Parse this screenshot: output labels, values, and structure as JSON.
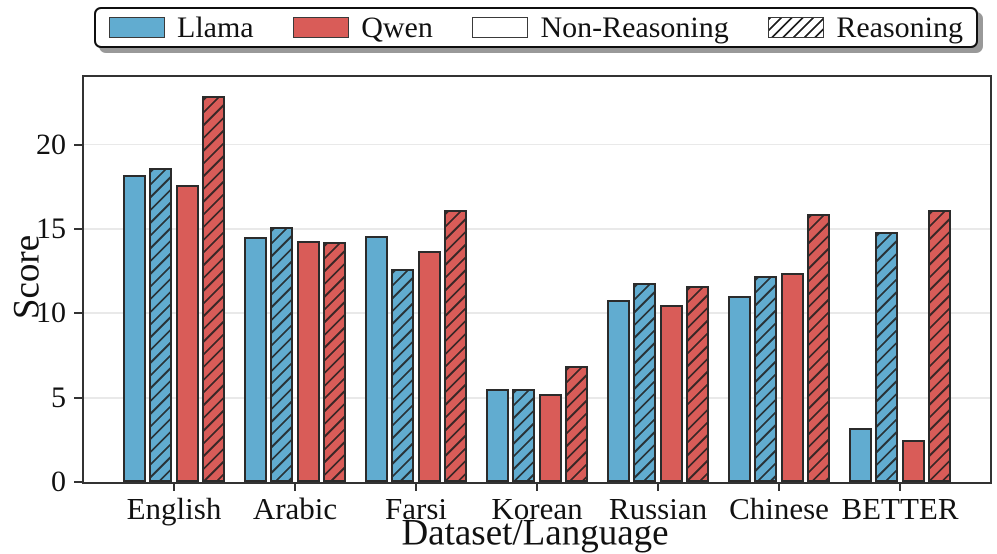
{
  "chart_data": {
    "type": "bar",
    "title": "",
    "xlabel": "Dataset/Language",
    "ylabel": "Score",
    "ylim": [
      0,
      24
    ],
    "yticks": [
      0,
      5,
      10,
      15,
      20
    ],
    "grid": "horizontal",
    "legend_position": "top-outside",
    "categories": [
      "English",
      "Arabic",
      "Farsi",
      "Korean",
      "Russian",
      "Chinese",
      "BETTER"
    ],
    "series": [
      {
        "name": "Llama Non-Reasoning",
        "model": "Llama",
        "reasoning": false,
        "color": "#61ACD0",
        "hatch": false,
        "values": [
          18.2,
          14.5,
          14.6,
          5.5,
          10.8,
          11.0,
          3.2
        ]
      },
      {
        "name": "Llama Reasoning",
        "model": "Llama",
        "reasoning": true,
        "color": "#61ACD0",
        "hatch": true,
        "values": [
          18.6,
          15.1,
          12.6,
          5.5,
          11.8,
          12.2,
          14.8
        ]
      },
      {
        "name": "Qwen Non-Reasoning",
        "model": "Qwen",
        "reasoning": false,
        "color": "#D95C58",
        "hatch": false,
        "values": [
          17.6,
          14.3,
          13.7,
          5.2,
          10.5,
          12.4,
          2.5
        ]
      },
      {
        "name": "Qwen Reasoning",
        "model": "Qwen",
        "reasoning": true,
        "color": "#D95C58",
        "hatch": true,
        "values": [
          22.9,
          14.2,
          16.1,
          6.9,
          11.6,
          15.9,
          16.1
        ]
      }
    ],
    "legend": {
      "items": [
        {
          "label": "Llama",
          "color": "#61ACD0",
          "hatch": false
        },
        {
          "label": "Qwen",
          "color": "#D95C58",
          "hatch": false
        },
        {
          "label": "Non-Reasoning",
          "color": "#FFFFFF",
          "hatch": false
        },
        {
          "label": "Reasoning",
          "color": "#FFFFFF",
          "hatch": true
        }
      ]
    },
    "colors": {
      "bar_edge": "#2B2B2B",
      "axis": "#333333",
      "gridline": "#E9E9E9",
      "background": "#FFFFFF"
    }
  }
}
